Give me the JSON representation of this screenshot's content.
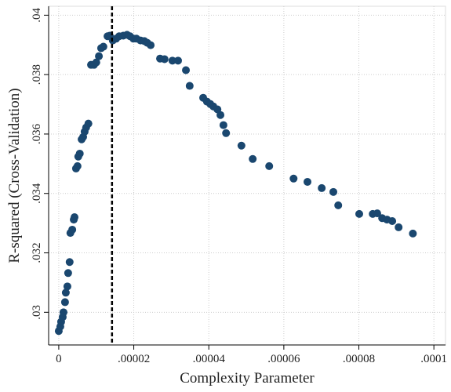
{
  "chart_data": {
    "type": "scatter",
    "x_label": "Complexity Parameter",
    "y_label": "R-squared (Cross-Validation)",
    "color": "#1a476f",
    "grid": true,
    "vline": 1.42e-05,
    "xlim": [
      -2.7e-06,
      0.0001031
    ],
    "ylim": [
      0.0289,
      0.0403
    ],
    "xticks": [
      0,
      {
        "value": 2e-05,
        "label": ".00002"
      },
      {
        "value": 4e-05,
        "label": ".00004"
      },
      {
        "value": 6e-05,
        "label": ".00006"
      },
      {
        "value": 8e-05,
        "label": ".00008"
      },
      {
        "value": 0.0001,
        "label": ".0001"
      }
    ],
    "yticks": [
      {
        "value": 0.03,
        "label": ".03"
      },
      {
        "value": 0.032,
        "label": ".032"
      },
      {
        "value": 0.034,
        "label": ".034"
      },
      {
        "value": 0.036,
        "label": ".036"
      },
      {
        "value": 0.038,
        "label": ".038"
      },
      {
        "value": 0.04,
        "label": ".04"
      }
    ],
    "x": [
      0,
      4.2e-07,
      6.3e-07,
      1.05e-06,
      1.26e-06,
      1.67e-06,
      1.88e-06,
      2.3e-06,
      2.5e-06,
      2.9e-06,
      3.1e-06,
      3.6e-06,
      4e-06,
      4.2e-06,
      4.6e-06,
      5e-06,
      5.2e-06,
      5.6e-06,
      6.1e-06,
      6.5e-06,
      6.9e-06,
      7.3e-06,
      7.9e-06,
      8.6e-06,
      9.4e-06,
      1e-05,
      1.07e-05,
      1.13e-05,
      1.19e-05,
      1.3e-05,
      1.36e-05,
      1.44e-05,
      1.53e-05,
      1.61e-05,
      1.72e-05,
      1.82e-05,
      1.9e-05,
      1.99e-05,
      2.07e-05,
      2.18e-05,
      2.28e-05,
      2.36e-05,
      2.45e-05,
      2.7e-05,
      2.82e-05,
      3.03e-05,
      3.18e-05,
      3.39e-05,
      3.49e-05,
      3.85e-05,
      3.95e-05,
      4.04e-05,
      4.12e-05,
      4.23e-05,
      4.31e-05,
      4.39e-05,
      4.46e-05,
      4.87e-05,
      5.17e-05,
      5.61e-05,
      6.26e-05,
      6.63e-05,
      7.01e-05,
      7.32e-05,
      7.45e-05,
      8.01e-05,
      8.37e-05,
      8.49e-05,
      8.62e-05,
      8.75e-05,
      8.89e-05,
      9.06e-05,
      9.44e-05
    ],
    "y": [
      0.02937,
      0.02952,
      0.02968,
      0.02984,
      0.03,
      0.03034,
      0.03066,
      0.03087,
      0.03132,
      0.03169,
      0.03267,
      0.03278,
      0.03312,
      0.0332,
      0.03484,
      0.03492,
      0.03524,
      0.03534,
      0.03582,
      0.0359,
      0.03608,
      0.03622,
      0.03635,
      0.03833,
      0.03833,
      0.03841,
      0.03862,
      0.03889,
      0.03894,
      0.03929,
      0.03931,
      0.03915,
      0.03921,
      0.03929,
      0.03931,
      0.03934,
      0.03929,
      0.03921,
      0.03921,
      0.03915,
      0.03913,
      0.03907,
      0.03899,
      0.03854,
      0.03852,
      0.03847,
      0.03847,
      0.03815,
      0.03762,
      0.03722,
      0.03709,
      0.03701,
      0.03693,
      0.03683,
      0.03664,
      0.0363,
      0.03603,
      0.03561,
      0.03516,
      0.03492,
      0.0345,
      0.03439,
      0.03418,
      0.03405,
      0.0336,
      0.03331,
      0.03331,
      0.03333,
      0.03317,
      0.03312,
      0.03307,
      0.03286,
      0.03265
    ]
  }
}
